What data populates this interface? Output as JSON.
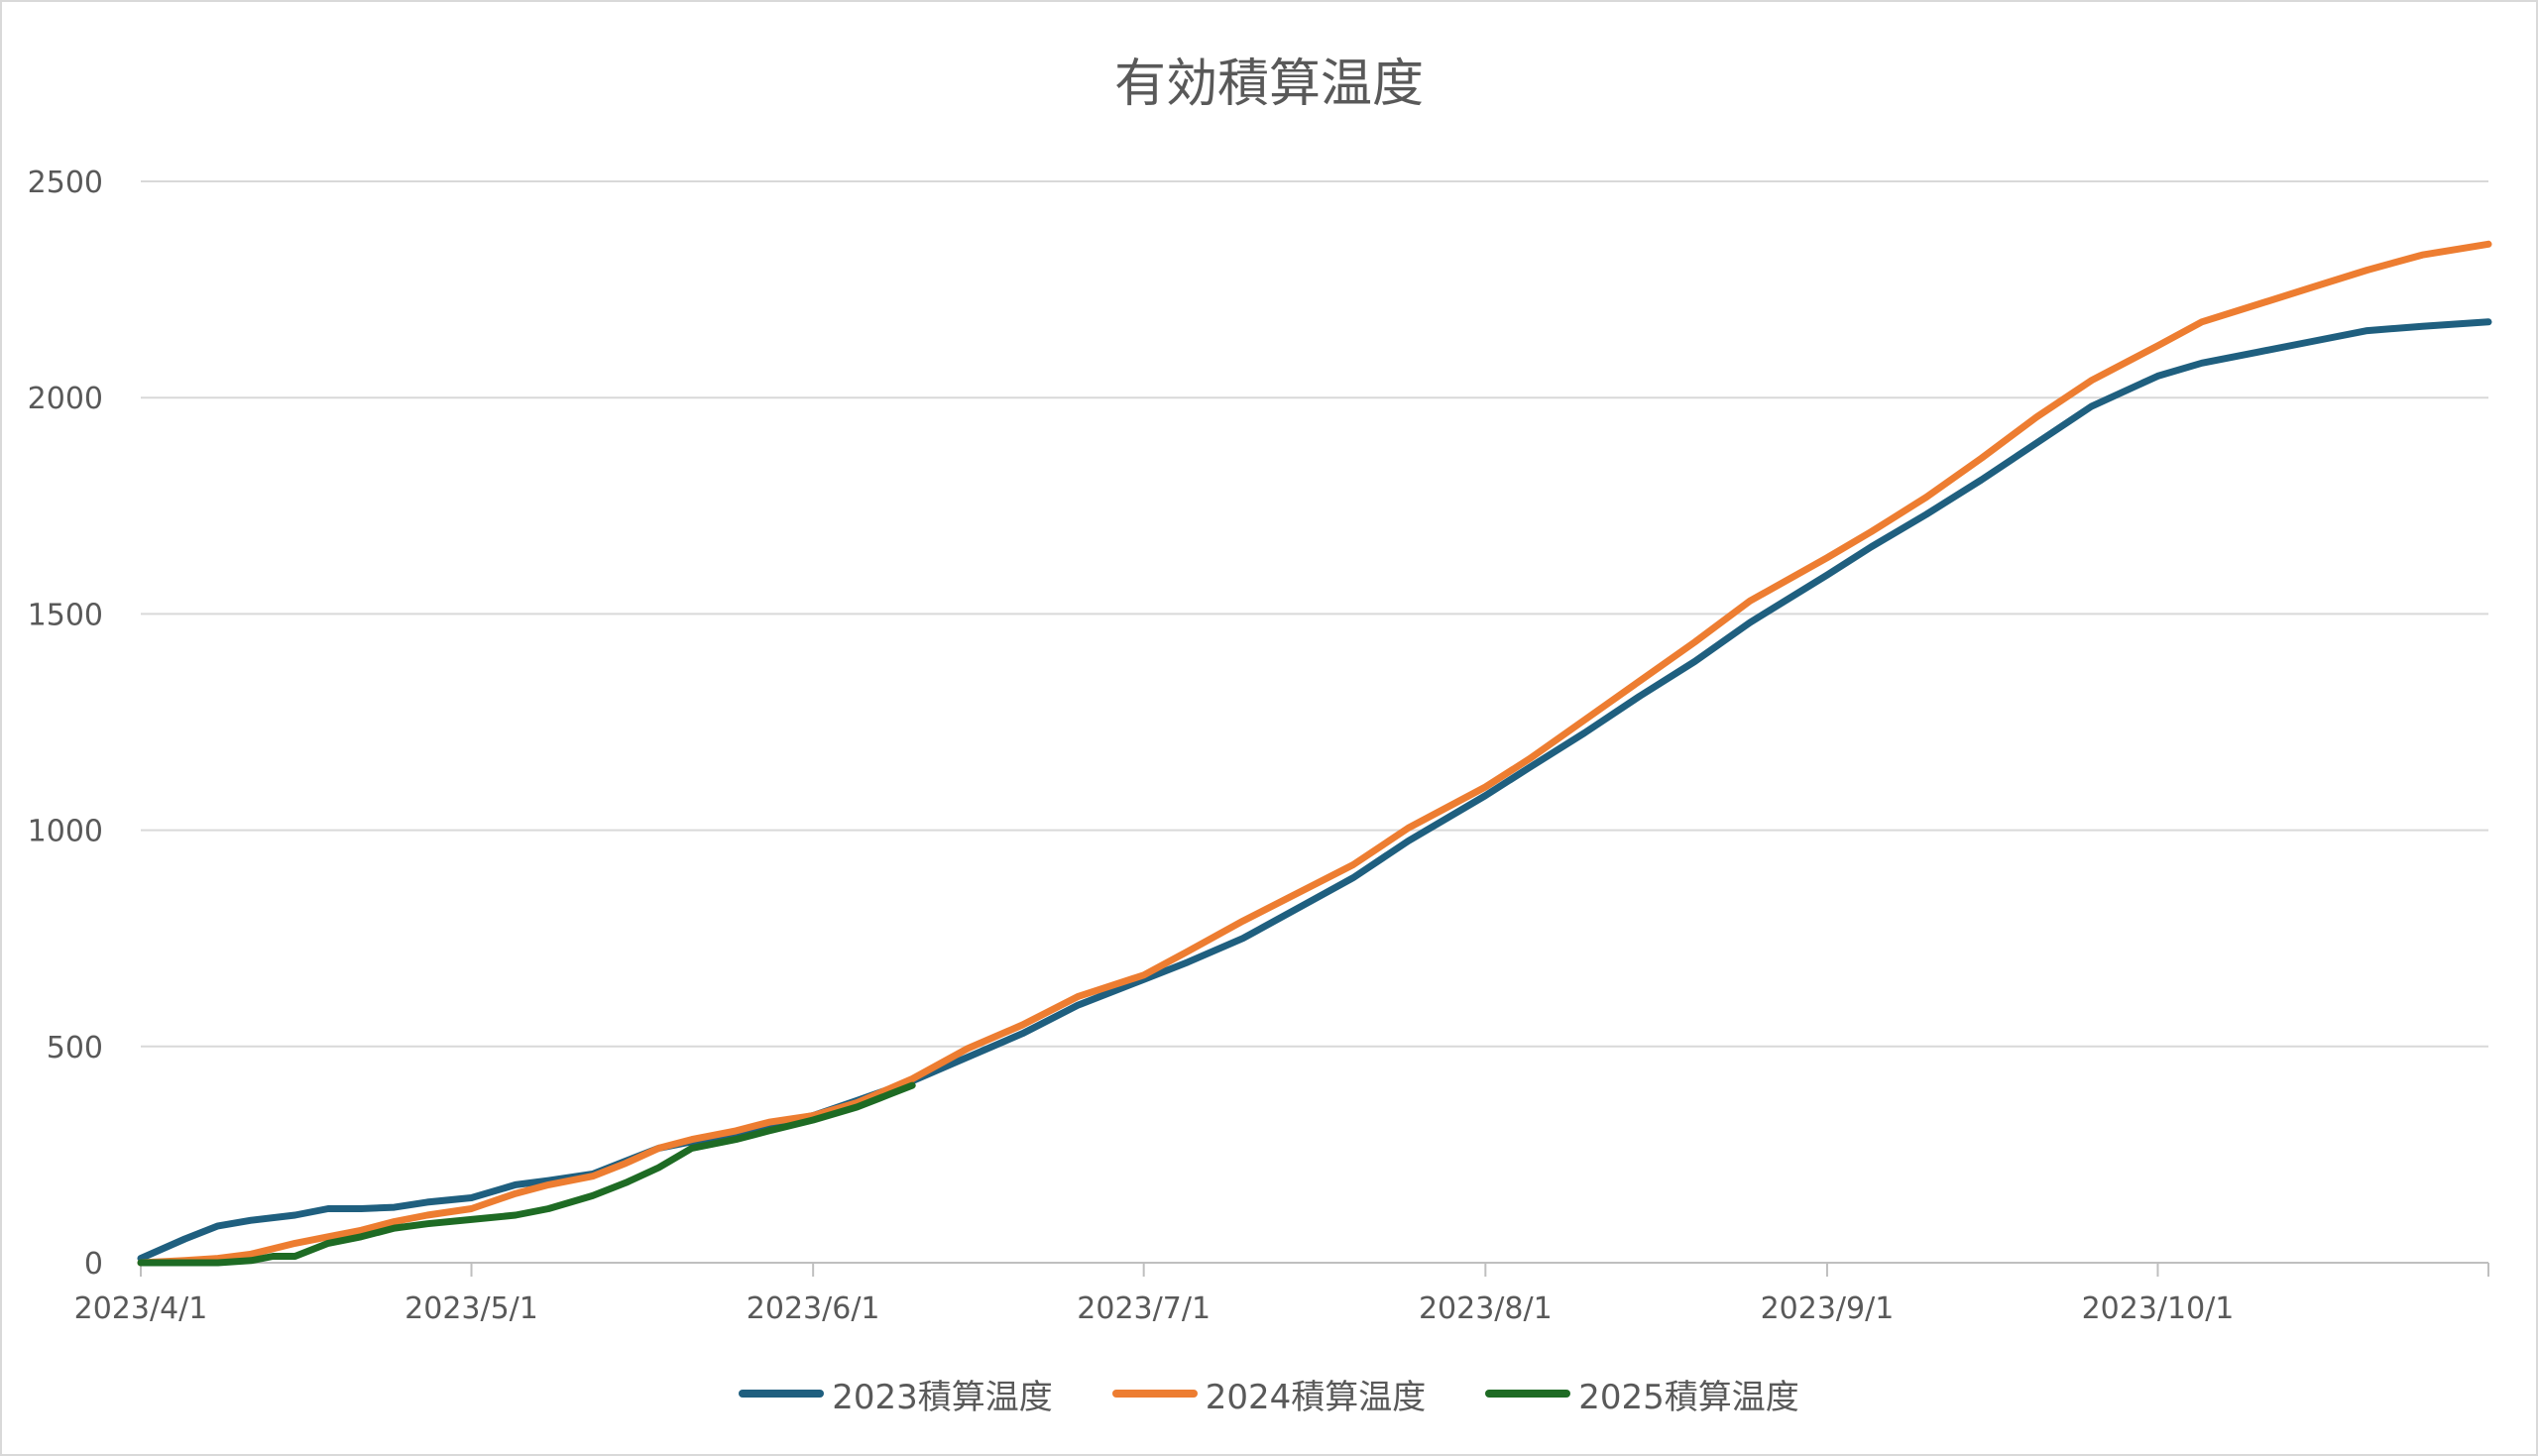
{
  "chart_data": {
    "type": "line",
    "title": "有効積算温度",
    "xlabel": "",
    "ylabel": "",
    "ylim": [
      0,
      2500
    ],
    "yticks": [
      0,
      500,
      1000,
      1500,
      2000,
      2500
    ],
    "x_range": [
      "2023/4/1",
      "2023/10/31"
    ],
    "xticks": [
      "2023/4/1",
      "2023/5/1",
      "2023/6/1",
      "2023/7/1",
      "2023/8/1",
      "2023/9/1",
      "2023/10/1"
    ],
    "grid": "horizontal",
    "legend_position": "bottom",
    "series": [
      {
        "name": "2023積算温度",
        "color": "#1f5f7f",
        "x": [
          "2023/4/1",
          "2023/4/5",
          "2023/4/8",
          "2023/4/11",
          "2023/4/15",
          "2023/4/18",
          "2023/4/21",
          "2023/4/24",
          "2023/4/27",
          "2023/5/1",
          "2023/5/5",
          "2023/5/8",
          "2023/5/12",
          "2023/5/15",
          "2023/5/18",
          "2023/5/21",
          "2023/5/25",
          "2023/5/28",
          "2023/6/1",
          "2023/6/5",
          "2023/6/10",
          "2023/6/15",
          "2023/6/20",
          "2023/6/25",
          "2023/7/1",
          "2023/7/5",
          "2023/7/10",
          "2023/7/15",
          "2023/7/20",
          "2023/7/25",
          "2023/8/1",
          "2023/8/5",
          "2023/8/10",
          "2023/8/15",
          "2023/8/20",
          "2023/8/25",
          "2023/9/1",
          "2023/9/5",
          "2023/9/10",
          "2023/9/15",
          "2023/9/20",
          "2023/9/25",
          "2023/10/1",
          "2023/10/5",
          "2023/10/10",
          "2023/10/15",
          "2023/10/20",
          "2023/10/25",
          "2023/10/31"
        ],
        "values": [
          10,
          55,
          85,
          98,
          110,
          125,
          125,
          128,
          140,
          150,
          180,
          190,
          205,
          235,
          265,
          280,
          300,
          320,
          340,
          375,
          420,
          475,
          530,
          595,
          655,
          695,
          750,
          820,
          890,
          975,
          1080,
          1145,
          1225,
          1310,
          1390,
          1480,
          1590,
          1655,
          1730,
          1810,
          1895,
          1980,
          2050,
          2080,
          2105,
          2130,
          2155,
          2165,
          2175
        ]
      },
      {
        "name": "2024積算温度",
        "color": "#ed7d31",
        "x": [
          "2023/4/1",
          "2023/4/5",
          "2023/4/8",
          "2023/4/11",
          "2023/4/15",
          "2023/4/18",
          "2023/4/21",
          "2023/4/24",
          "2023/4/27",
          "2023/5/1",
          "2023/5/5",
          "2023/5/8",
          "2023/5/12",
          "2023/5/15",
          "2023/5/18",
          "2023/5/21",
          "2023/5/25",
          "2023/5/28",
          "2023/6/1",
          "2023/6/5",
          "2023/6/10",
          "2023/6/15",
          "2023/6/20",
          "2023/6/25",
          "2023/7/1",
          "2023/7/5",
          "2023/7/10",
          "2023/7/15",
          "2023/7/20",
          "2023/7/25",
          "2023/8/1",
          "2023/8/5",
          "2023/8/10",
          "2023/8/15",
          "2023/8/20",
          "2023/8/25",
          "2023/9/1",
          "2023/9/5",
          "2023/9/10",
          "2023/9/15",
          "2023/9/20",
          "2023/9/25",
          "2023/10/1",
          "2023/10/5",
          "2023/10/10",
          "2023/10/15",
          "2023/10/20",
          "2023/10/25",
          "2023/10/31"
        ],
        "values": [
          0,
          5,
          10,
          20,
          45,
          60,
          75,
          95,
          110,
          125,
          160,
          180,
          200,
          230,
          265,
          285,
          305,
          325,
          340,
          370,
          425,
          495,
          550,
          615,
          665,
          720,
          790,
          855,
          920,
          1005,
          1100,
          1165,
          1255,
          1345,
          1435,
          1530,
          1630,
          1690,
          1770,
          1860,
          1955,
          2040,
          2120,
          2175,
          2215,
          2255,
          2295,
          2330,
          2355
        ]
      },
      {
        "name": "2025積算温度",
        "color": "#1e6b24",
        "x": [
          "2023/4/1",
          "2023/4/5",
          "2023/4/8",
          "2023/4/11",
          "2023/4/13",
          "2023/4/15",
          "2023/4/18",
          "2023/4/21",
          "2023/4/24",
          "2023/4/27",
          "2023/5/1",
          "2023/5/5",
          "2023/5/8",
          "2023/5/12",
          "2023/5/15",
          "2023/5/18",
          "2023/5/21",
          "2023/5/25",
          "2023/5/28",
          "2023/6/1",
          "2023/6/5",
          "2023/6/8",
          "2023/6/10"
        ],
        "values": [
          0,
          0,
          0,
          5,
          15,
          15,
          45,
          60,
          80,
          90,
          100,
          110,
          125,
          155,
          185,
          220,
          265,
          285,
          305,
          330,
          360,
          390,
          410
        ]
      }
    ]
  }
}
